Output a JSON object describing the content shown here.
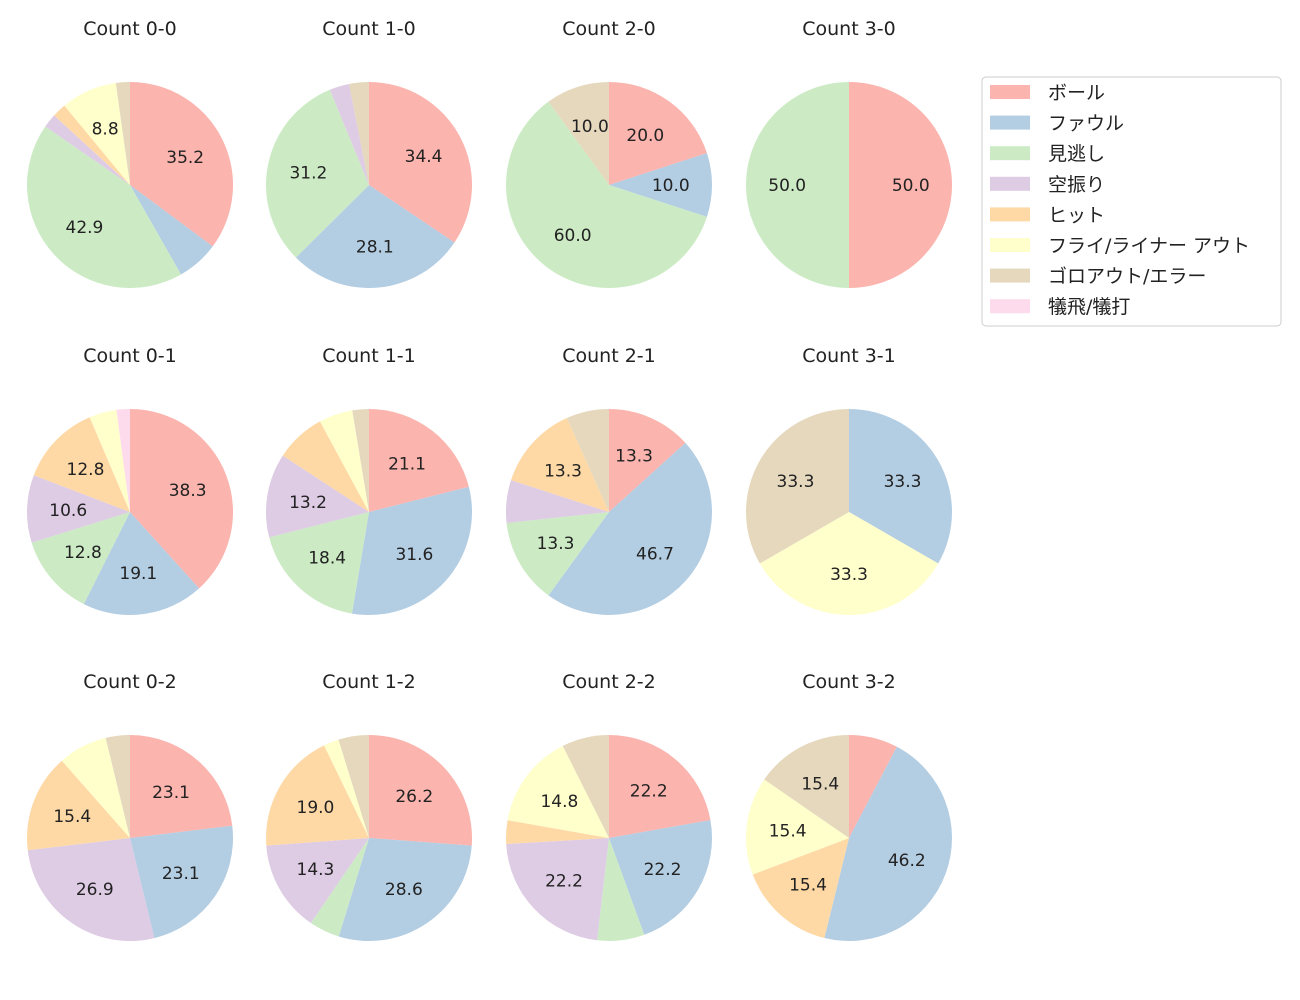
{
  "chart_data": {
    "type": "pie",
    "legend": {
      "placement": "top-right",
      "entries": [
        "ボール",
        "ファウル",
        "見逃し",
        "空振り",
        "ヒット",
        "フライ/ライナー アウト",
        "ゴロアウト/エラー",
        "犠飛/犠打"
      ]
    },
    "colors": [
      "#fbb4ae",
      "#b3cde3",
      "#ccebc5",
      "#decbe4",
      "#fed9a6",
      "#ffffcc",
      "#e5d8bd",
      "#fddaec"
    ],
    "start_angle": 90,
    "direction": "clockwise",
    "label_min_percent": 8,
    "charts": [
      {
        "title": "Count 0-0",
        "values": [
          35.2,
          6.6,
          42.9,
          2.2,
          2.2,
          8.8,
          2.2,
          0
        ]
      },
      {
        "title": "Count 1-0",
        "values": [
          34.4,
          28.1,
          31.2,
          3.1,
          0,
          0,
          3.1,
          0
        ]
      },
      {
        "title": "Count 2-0",
        "values": [
          20.0,
          10.0,
          60.0,
          0,
          0,
          0,
          10.0,
          0
        ]
      },
      {
        "title": "Count 3-0",
        "values": [
          50.0,
          0,
          50.0,
          0,
          0,
          0,
          0,
          0
        ]
      },
      {
        "title": "Count 0-1",
        "values": [
          38.3,
          19.1,
          12.8,
          10.6,
          12.8,
          4.3,
          0,
          2.1
        ]
      },
      {
        "title": "Count 1-1",
        "values": [
          21.1,
          31.6,
          18.4,
          13.2,
          7.9,
          5.3,
          2.6,
          0
        ]
      },
      {
        "title": "Count 2-1",
        "values": [
          13.3,
          46.7,
          13.3,
          6.7,
          13.3,
          0,
          6.7,
          0
        ]
      },
      {
        "title": "Count 3-1",
        "values": [
          0,
          33.3,
          0,
          0,
          0,
          33.3,
          33.3,
          0
        ]
      },
      {
        "title": "Count 0-2",
        "values": [
          23.1,
          23.1,
          0,
          26.9,
          15.4,
          7.7,
          3.8,
          0
        ]
      },
      {
        "title": "Count 1-2",
        "values": [
          26.2,
          28.6,
          4.8,
          14.3,
          19.0,
          2.4,
          4.8,
          0
        ]
      },
      {
        "title": "Count 2-2",
        "values": [
          22.2,
          22.2,
          7.4,
          22.2,
          3.7,
          14.8,
          7.4,
          0
        ]
      },
      {
        "title": "Count 3-2",
        "values": [
          7.7,
          46.2,
          0,
          0,
          15.4,
          15.4,
          15.4,
          0
        ]
      }
    ]
  }
}
